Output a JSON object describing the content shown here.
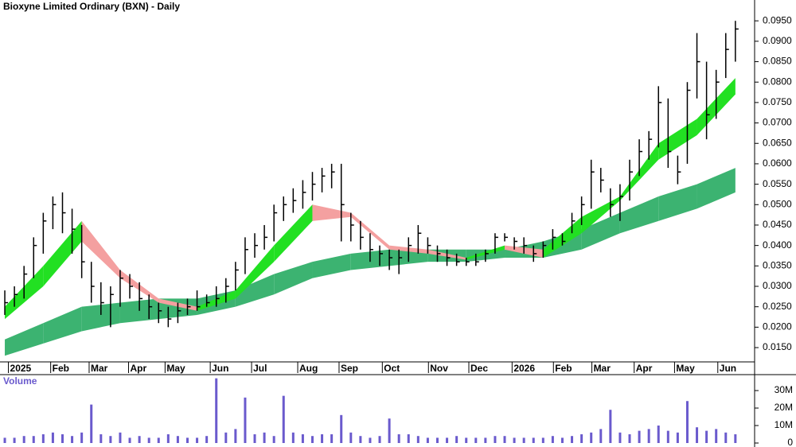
{
  "chart_data": {
    "type": "ohlc",
    "title": "Bioxyne Limited Ordinary (BXN) - Daily",
    "x": [
      0,
      1,
      2,
      3,
      4,
      5,
      6,
      7,
      8,
      9,
      10,
      11,
      12,
      13,
      14,
      15,
      16,
      17,
      18,
      19,
      20,
      21,
      22,
      23,
      24,
      25,
      26,
      27,
      28,
      29,
      30,
      31,
      32,
      33,
      34,
      35,
      36,
      37,
      38,
      39,
      40,
      41,
      42,
      43,
      44,
      45,
      46,
      47,
      48,
      49,
      50,
      51,
      52,
      53,
      54,
      55,
      56,
      57,
      58,
      59,
      60,
      61,
      62,
      63,
      64,
      65,
      66,
      67,
      68,
      69,
      70,
      71,
      72,
      73,
      74,
      75,
      76
    ],
    "high": [
      0.029,
      0.03,
      0.035,
      0.042,
      0.048,
      0.052,
      0.053,
      0.049,
      0.045,
      0.036,
      0.031,
      0.03,
      0.034,
      0.033,
      0.031,
      0.028,
      0.026,
      0.025,
      0.026,
      0.027,
      0.029,
      0.028,
      0.03,
      0.032,
      0.036,
      0.042,
      0.043,
      0.045,
      0.05,
      0.052,
      0.054,
      0.056,
      0.058,
      0.059,
      0.06,
      0.06,
      0.048,
      0.046,
      0.043,
      0.04,
      0.039,
      0.039,
      0.042,
      0.045,
      0.042,
      0.04,
      0.039,
      0.038,
      0.037,
      0.038,
      0.039,
      0.043,
      0.043,
      0.042,
      0.042,
      0.04,
      0.041,
      0.044,
      0.043,
      0.048,
      0.052,
      0.061,
      0.059,
      0.054,
      0.055,
      0.061,
      0.066,
      0.068,
      0.079,
      0.076,
      0.062,
      0.08,
      0.092,
      0.085,
      0.083,
      0.092,
      0.095
    ],
    "low": [
      0.023,
      0.025,
      0.027,
      0.032,
      0.038,
      0.044,
      0.043,
      0.038,
      0.032,
      0.026,
      0.023,
      0.02,
      0.025,
      0.027,
      0.024,
      0.022,
      0.021,
      0.02,
      0.021,
      0.023,
      0.024,
      0.025,
      0.025,
      0.026,
      0.029,
      0.033,
      0.037,
      0.039,
      0.041,
      0.046,
      0.048,
      0.049,
      0.051,
      0.053,
      0.054,
      0.041,
      0.041,
      0.039,
      0.036,
      0.035,
      0.034,
      0.033,
      0.036,
      0.038,
      0.038,
      0.036,
      0.035,
      0.035,
      0.035,
      0.035,
      0.036,
      0.038,
      0.041,
      0.039,
      0.038,
      0.036,
      0.037,
      0.039,
      0.04,
      0.043,
      0.045,
      0.049,
      0.053,
      0.047,
      0.046,
      0.051,
      0.057,
      0.061,
      0.064,
      0.059,
      0.055,
      0.06,
      0.076,
      0.066,
      0.071,
      0.081,
      0.085
    ],
    "close": [
      0.026,
      0.028,
      0.033,
      0.04,
      0.046,
      0.05,
      0.048,
      0.044,
      0.036,
      0.03,
      0.026,
      0.028,
      0.032,
      0.03,
      0.027,
      0.025,
      0.024,
      0.022,
      0.024,
      0.025,
      0.025,
      0.026,
      0.027,
      0.03,
      0.034,
      0.039,
      0.04,
      0.042,
      0.048,
      0.05,
      0.051,
      0.053,
      0.055,
      0.057,
      0.058,
      0.05,
      0.045,
      0.042,
      0.039,
      0.038,
      0.037,
      0.037,
      0.04,
      0.043,
      0.04,
      0.038,
      0.037,
      0.036,
      0.036,
      0.036,
      0.038,
      0.042,
      0.042,
      0.041,
      0.04,
      0.038,
      0.04,
      0.042,
      0.041,
      0.046,
      0.05,
      0.058,
      0.056,
      0.05,
      0.052,
      0.058,
      0.063,
      0.066,
      0.075,
      0.063,
      0.058,
      0.078,
      0.085,
      0.072,
      0.08,
      0.088,
      0.093
    ],
    "bar_color": "#000000",
    "xlim": [
      -0.5,
      78
    ],
    "xticks": [
      {
        "value": 1.2,
        "label": "2025"
      },
      {
        "value": 5.6,
        "label": "Feb"
      },
      {
        "value": 9.6,
        "label": "Mar"
      },
      {
        "value": 13.7,
        "label": "Apr"
      },
      {
        "value": 17.5,
        "label": "May"
      },
      {
        "value": 22.2,
        "label": "Jun"
      },
      {
        "value": 26.5,
        "label": "Jul"
      },
      {
        "value": 31.3,
        "label": "Aug"
      },
      {
        "value": 35.6,
        "label": "Sep"
      },
      {
        "value": 40.1,
        "label": "Oct"
      },
      {
        "value": 44.9,
        "label": "Nov"
      },
      {
        "value": 49.1,
        "label": "Dec"
      },
      {
        "value": 53.6,
        "label": "2026"
      },
      {
        "value": 57.9,
        "label": "Feb"
      },
      {
        "value": 61.9,
        "label": "Mar"
      },
      {
        "value": 66.3,
        "label": "Apr"
      },
      {
        "value": 70.5,
        "label": "May"
      },
      {
        "value": 75.0,
        "label": "Jun"
      }
    ],
    "ylim": [
      0.0115,
      0.1001
    ],
    "yticks": [
      {
        "value": 0.015,
        "label": "0.0150"
      },
      {
        "value": 0.02,
        "label": "0.0200"
      },
      {
        "value": 0.025,
        "label": "0.0250"
      },
      {
        "value": 0.03,
        "label": "0.0300"
      },
      {
        "value": 0.035,
        "label": "0.0350"
      },
      {
        "value": 0.04,
        "label": "0.0400"
      },
      {
        "value": 0.045,
        "label": "0.0450"
      },
      {
        "value": 0.05,
        "label": "0.0500"
      },
      {
        "value": 0.055,
        "label": "0.0550"
      },
      {
        "value": 0.06,
        "label": "0.0600"
      },
      {
        "value": 0.065,
        "label": "0.0650"
      },
      {
        "value": 0.07,
        "label": "0.0700"
      },
      {
        "value": 0.075,
        "label": "0.0750"
      },
      {
        "value": 0.08,
        "label": "0.0800"
      },
      {
        "value": 0.085,
        "label": "0.0850"
      },
      {
        "value": 0.09,
        "label": "0.0900"
      },
      {
        "value": 0.095,
        "label": "0.0950"
      }
    ],
    "ribbons": {
      "x": [
        0,
        4,
        8,
        12,
        16,
        20,
        24,
        28,
        32,
        36,
        40,
        44,
        48,
        52,
        56,
        60,
        64,
        68,
        72,
        76
      ],
      "short_upper": [
        0.025,
        0.035,
        0.046,
        0.034,
        0.027,
        0.025,
        0.029,
        0.04,
        0.05,
        0.048,
        0.04,
        0.039,
        0.037,
        0.04,
        0.039,
        0.047,
        0.052,
        0.065,
        0.071,
        0.081
      ],
      "short_lower": [
        0.022,
        0.03,
        0.041,
        0.032,
        0.026,
        0.024,
        0.027,
        0.036,
        0.046,
        0.047,
        0.039,
        0.038,
        0.0365,
        0.039,
        0.037,
        0.043,
        0.051,
        0.061,
        0.067,
        0.077
      ],
      "long_upper": [
        0.017,
        0.021,
        0.025,
        0.026,
        0.027,
        0.027,
        0.029,
        0.033,
        0.036,
        0.038,
        0.039,
        0.039,
        0.039,
        0.039,
        0.041,
        0.044,
        0.048,
        0.052,
        0.055,
        0.059
      ],
      "long_lower": [
        0.013,
        0.016,
        0.019,
        0.021,
        0.022,
        0.023,
        0.025,
        0.028,
        0.032,
        0.034,
        0.035,
        0.036,
        0.036,
        0.037,
        0.037,
        0.039,
        0.043,
        0.046,
        0.049,
        0.053
      ],
      "short_color_up": "#22e022",
      "short_color_down": "#f4a0a0",
      "long_color": "#3cb371"
    },
    "volume": {
      "label": "Volume",
      "values": [
        3,
        3,
        4,
        4,
        5,
        6,
        5,
        4,
        6,
        22,
        5,
        4,
        6,
        3,
        4,
        3,
        3,
        5,
        4,
        3,
        3,
        4,
        37,
        6,
        8,
        26,
        5,
        6,
        4,
        27,
        6,
        5,
        4,
        5,
        5,
        16,
        6,
        4,
        3,
        4,
        14,
        5,
        5,
        4,
        3,
        3,
        3,
        4,
        3,
        3,
        3,
        4,
        4,
        3,
        3,
        3,
        3,
        4,
        3,
        4,
        5,
        6,
        8,
        19,
        6,
        5,
        7,
        8,
        10,
        7,
        6,
        24,
        9,
        7,
        8,
        6,
        5
      ],
      "color": "#6a5acd",
      "ylim": [
        0,
        37.3
      ],
      "yticks": [
        0,
        {
          "value": 10,
          "label": "10M"
        },
        {
          "value": 20,
          "label": "20M"
        },
        {
          "value": 30,
          "label": "30M"
        }
      ]
    }
  }
}
